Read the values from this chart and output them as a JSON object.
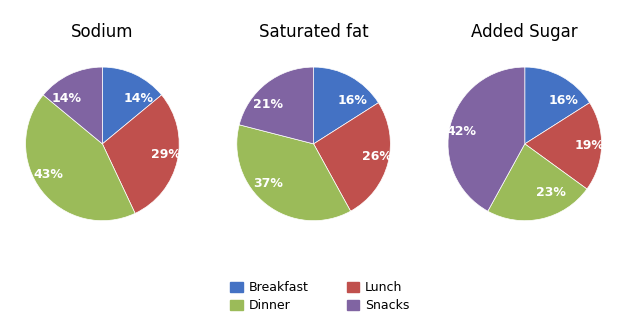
{
  "charts": [
    {
      "title": "Sodium",
      "values": [
        14,
        29,
        43,
        14
      ],
      "labels": [
        "14%",
        "29%",
        "43%",
        "14%"
      ],
      "startangle": 90
    },
    {
      "title": "Saturated fat",
      "values": [
        16,
        26,
        37,
        21
      ],
      "labels": [
        "16%",
        "26%",
        "37%",
        "21%"
      ],
      "startangle": 90
    },
    {
      "title": "Added Sugar",
      "values": [
        16,
        19,
        23,
        42
      ],
      "labels": [
        "16%",
        "19%",
        "23%",
        "42%"
      ],
      "startangle": 90
    }
  ],
  "colors": [
    "#4472C4",
    "#C0504D",
    "#9BBB59",
    "#8064A2"
  ],
  "legend_labels": [
    "Breakfast",
    "Lunch",
    "Dinner",
    "Snacks"
  ],
  "background_color": "#ffffff",
  "title_fontsize": 12,
  "label_fontsize": 9,
  "legend_fontsize": 9
}
